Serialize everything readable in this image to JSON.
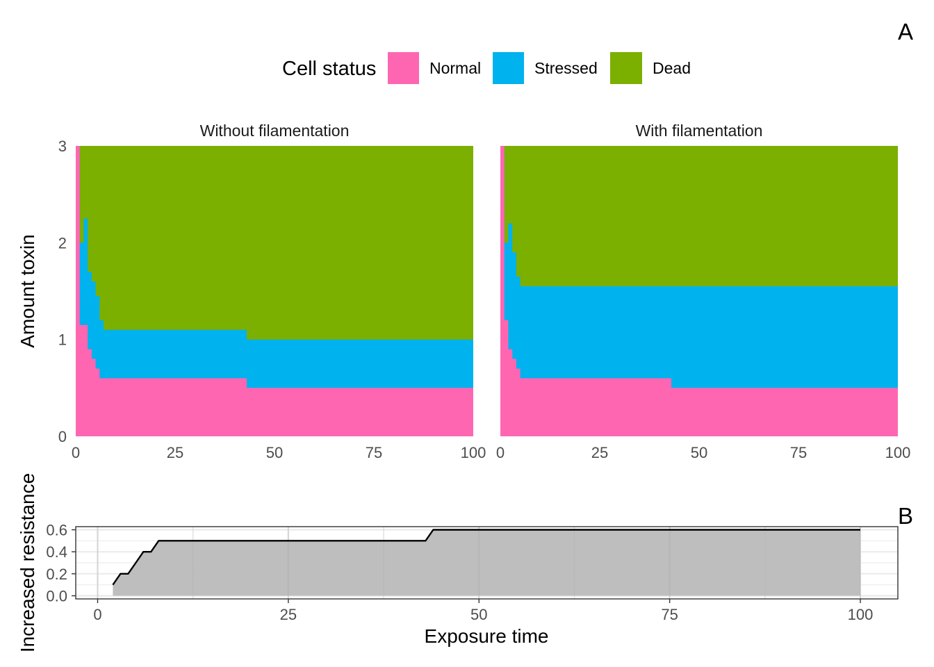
{
  "legend": {
    "title": "Cell status",
    "entries": [
      {
        "label": "Normal",
        "color": "#FF66B2"
      },
      {
        "label": "Stressed",
        "color": "#00B2EE"
      },
      {
        "label": "Dead",
        "color": "#7BAF00"
      }
    ]
  },
  "tags": {
    "top": "A",
    "bottom": "B"
  },
  "chart_data": [
    {
      "type": "area",
      "panel": "A",
      "ylabel": "Amount toxin",
      "xlim": [
        0,
        100
      ],
      "ylim": [
        0,
        3
      ],
      "x_ticks": [
        "0",
        "25",
        "50",
        "75",
        "100"
      ],
      "y_ticks": [
        "0",
        "1",
        "2",
        "3"
      ],
      "facets": [
        {
          "title": "Without filamentation",
          "normal_upper": [
            [
              0,
              3
            ],
            [
              1,
              1.15
            ],
            [
              2,
              1.15
            ],
            [
              3,
              0.9
            ],
            [
              4,
              0.8
            ],
            [
              5,
              0.7
            ],
            [
              6,
              0.6
            ],
            [
              43,
              0.6
            ],
            [
              43,
              0.5
            ],
            [
              100,
              0.5
            ]
          ],
          "stressed_upper": [
            [
              0,
              3
            ],
            [
              1,
              2.0
            ],
            [
              2,
              2.25
            ],
            [
              3,
              1.7
            ],
            [
              4,
              1.6
            ],
            [
              5,
              1.45
            ],
            [
              6,
              1.2
            ],
            [
              7,
              1.1
            ],
            [
              43,
              1.1
            ],
            [
              43,
              1.0
            ],
            [
              100,
              1.0
            ]
          ]
        },
        {
          "title": "With filamentation",
          "normal_upper": [
            [
              0,
              3
            ],
            [
              1,
              1.2
            ],
            [
              2,
              0.9
            ],
            [
              3,
              0.8
            ],
            [
              4,
              0.7
            ],
            [
              5,
              0.6
            ],
            [
              43,
              0.6
            ],
            [
              43,
              0.5
            ],
            [
              100,
              0.5
            ]
          ],
          "stressed_upper": [
            [
              0,
              3
            ],
            [
              1,
              2.0
            ],
            [
              2,
              2.2
            ],
            [
              3,
              1.9
            ],
            [
              4,
              1.65
            ],
            [
              5,
              1.55
            ],
            [
              100,
              1.55
            ]
          ]
        }
      ]
    },
    {
      "type": "area",
      "panel": "B",
      "xlabel": "Exposure time",
      "ylabel": "Increased resistance",
      "xlim": [
        0,
        100
      ],
      "ylim": [
        0,
        0.6
      ],
      "x_ticks": [
        "0",
        "25",
        "50",
        "75",
        "100"
      ],
      "y_ticks": [
        "0.0",
        "0.2",
        "0.4",
        "0.6"
      ],
      "points": [
        [
          2,
          0.1
        ],
        [
          3,
          0.2
        ],
        [
          4,
          0.2
        ],
        [
          5,
          0.3
        ],
        [
          6,
          0.4
        ],
        [
          7,
          0.4
        ],
        [
          8,
          0.5
        ],
        [
          43,
          0.5
        ],
        [
          44,
          0.6
        ],
        [
          100,
          0.6
        ]
      ],
      "fill_color": "#BBBBBB",
      "line_color": "#000000",
      "grid": true
    }
  ]
}
